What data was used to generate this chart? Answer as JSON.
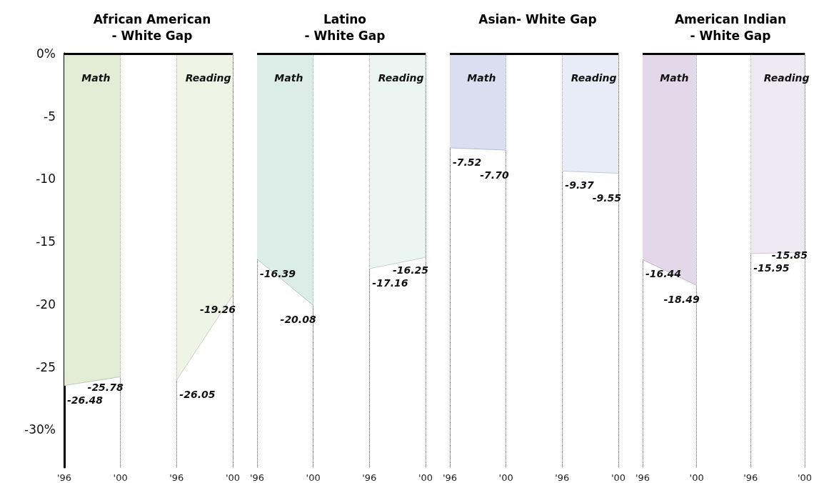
{
  "chart_data": [
    {
      "type": "area",
      "title": "African American\n- White Gap",
      "categories": [
        "'96",
        "'00",
        "'96",
        "'00"
      ],
      "series": [
        {
          "name": "Math",
          "color": "#e2ecd6",
          "values": [
            -26.48,
            -25.78,
            null,
            null
          ]
        },
        {
          "name": "Reading",
          "color": "#eef5e6",
          "values": [
            null,
            null,
            -26.05,
            -19.26
          ]
        }
      ],
      "ylim": [
        -33,
        0
      ],
      "yticks": [
        {
          "value": 0,
          "label": "0%"
        },
        -5,
        -10,
        -15,
        -20,
        -25,
        {
          "value": -30,
          "label": "-30%"
        }
      ],
      "ref_lines": [
        {
          "axis": "y",
          "value": 0,
          "color": "#000000"
        }
      ],
      "grid": "x",
      "data_labels": true
    },
    {
      "type": "area",
      "title": "Latino\n- White Gap",
      "categories": [
        "'96",
        "'00",
        "'96",
        "'00"
      ],
      "series": [
        {
          "name": "Math",
          "color": "#dcede8",
          "values": [
            -16.39,
            -20.08,
            null,
            null
          ]
        },
        {
          "name": "Reading",
          "color": "#ebf5f1",
          "values": [
            null,
            null,
            -17.16,
            -16.25
          ]
        }
      ],
      "ylim": [
        -33,
        0
      ],
      "ref_lines": [
        {
          "axis": "y",
          "value": 0,
          "color": "#000000"
        }
      ],
      "grid": "x",
      "data_labels": true,
      "tick_labels": "x"
    },
    {
      "type": "area",
      "title": "Asian- White Gap",
      "categories": [
        "'96",
        "'00",
        "'96",
        "'00"
      ],
      "series": [
        {
          "name": "Math",
          "color": "#d9dff0",
          "values": [
            -7.52,
            -7.7,
            null,
            null
          ],
          "value_labels": [
            "-7.52",
            "-7.70",
            null,
            null
          ]
        },
        {
          "name": "Reading",
          "color": "#e8ecf7",
          "values": [
            null,
            null,
            -9.37,
            -9.55
          ],
          "value_labels": [
            null,
            null,
            "-9.37",
            "-9.55"
          ]
        }
      ],
      "ylim": [
        -33,
        0
      ],
      "ref_lines": [
        {
          "axis": "y",
          "value": 0,
          "color": "#000000"
        }
      ],
      "grid": "x",
      "tick_labels": "x"
    },
    {
      "type": "area",
      "title": "American Indian\n- White Gap",
      "categories": [
        "'96",
        "'00",
        "'96",
        "'00"
      ],
      "series": [
        {
          "name": "Math",
          "color": "#e2d8ea",
          "values": [
            -16.44,
            -18.49,
            null,
            null
          ]
        },
        {
          "name": "Reading",
          "color": "#efe9f4",
          "values": [
            null,
            null,
            -15.95,
            -15.85
          ]
        }
      ],
      "ylim": [
        -33,
        0
      ],
      "ref_lines": [
        {
          "axis": "y",
          "value": 0,
          "color": "#000000"
        }
      ],
      "grid": "x",
      "data_labels": true,
      "tick_labels": "x"
    }
  ]
}
